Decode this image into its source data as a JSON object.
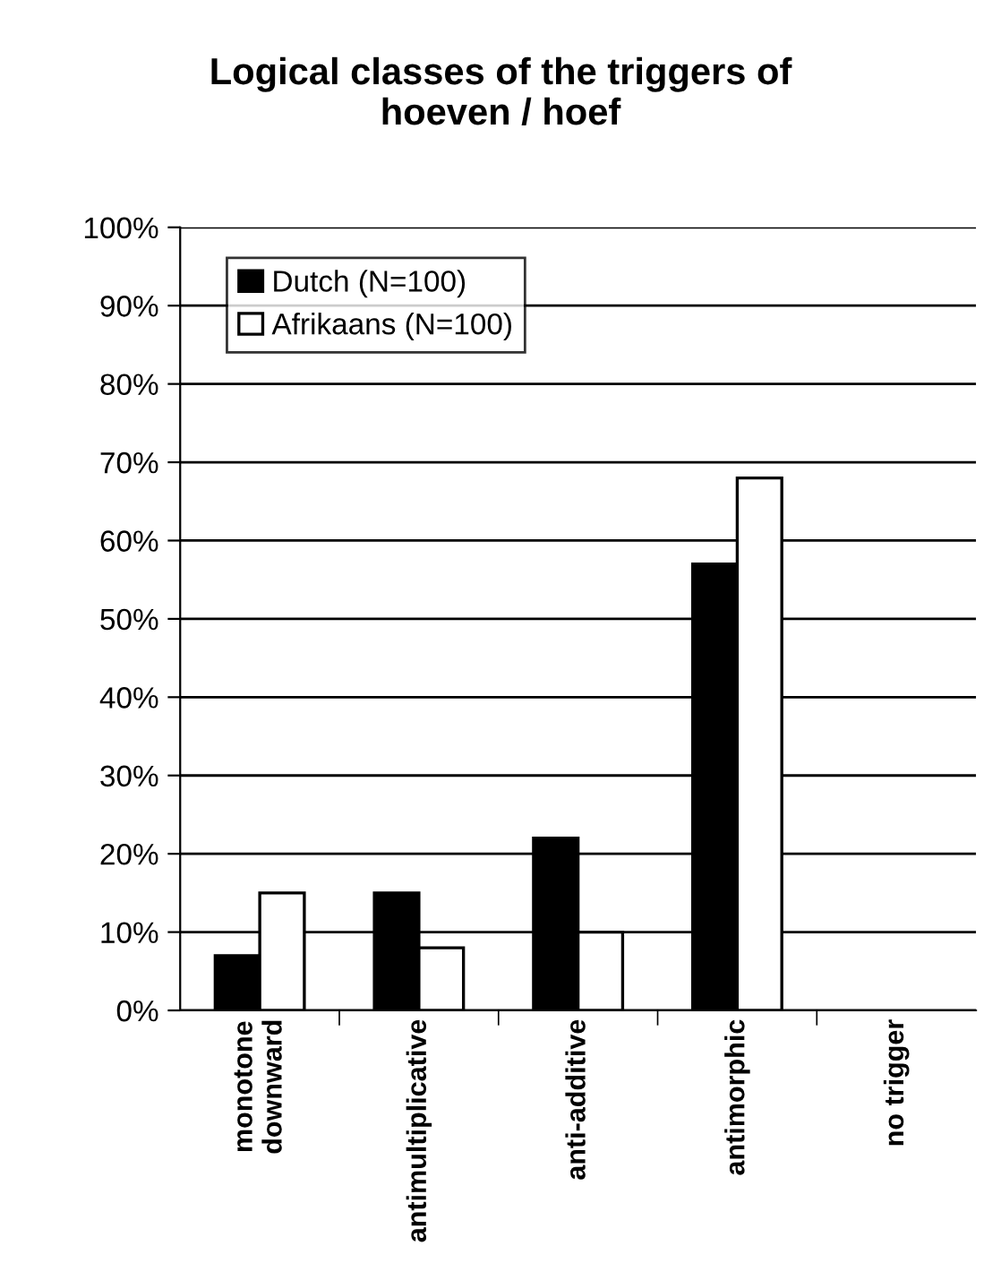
{
  "chart_data": {
    "type": "bar",
    "title": "Logical classes of the triggers of\nhoeven / hoef",
    "categories": [
      "monotone\ndownward",
      "antimultiplicative",
      "anti-additive",
      "antimorphic",
      "no trigger"
    ],
    "series": [
      {
        "name": "Dutch (N=100)",
        "color": "#000000",
        "values": [
          7,
          15,
          22,
          57,
          null
        ]
      },
      {
        "name": "Afrikaans (N=100)",
        "color": "#ffffff",
        "values": [
          15,
          8,
          10,
          68,
          null
        ]
      }
    ],
    "ylim": [
      0,
      100
    ],
    "yticks": [
      {
        "value": 0,
        "label": "0%"
      },
      {
        "value": 10,
        "label": "10%"
      },
      {
        "value": 20,
        "label": "20%"
      },
      {
        "value": 30,
        "label": "30%"
      },
      {
        "value": 40,
        "label": "40%"
      },
      {
        "value": 50,
        "label": "50%"
      },
      {
        "value": 60,
        "label": "60%"
      },
      {
        "value": 70,
        "label": "70%"
      },
      {
        "value": 80,
        "label": "80%"
      },
      {
        "value": 90,
        "label": "90%"
      },
      {
        "value": 100,
        "label": "100%"
      }
    ],
    "grid": "y",
    "legend": "top left"
  }
}
